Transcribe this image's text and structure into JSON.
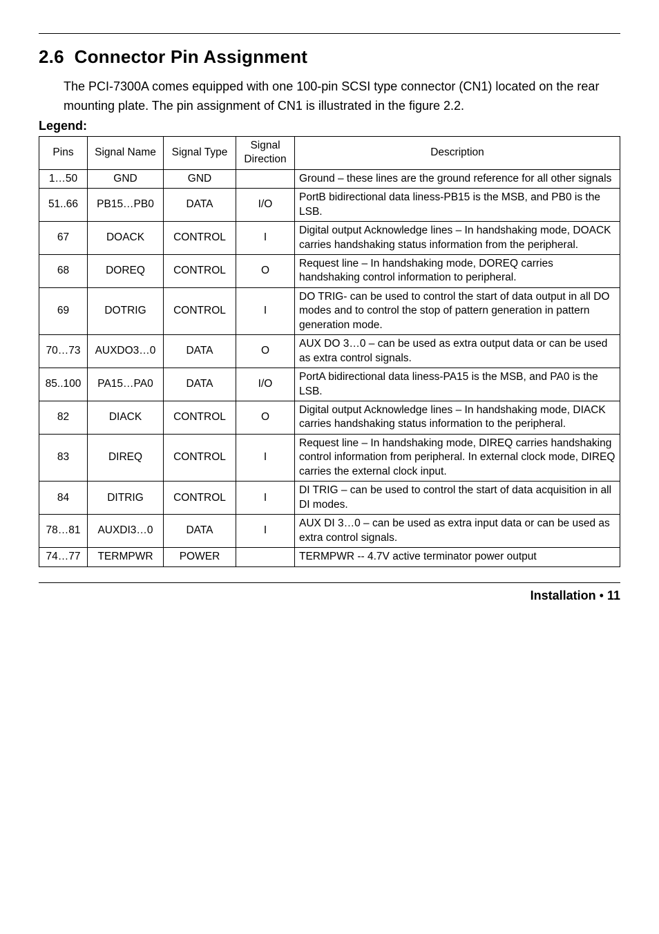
{
  "section": {
    "number": "2.6",
    "title": "Connector Pin Assignment",
    "paragraph": "The PCI-7300A comes equipped with one 100-pin SCSI type connector (CN1) located on the rear mounting plate. The pin assignment of CN1 is illustrated in the figure 2.2.",
    "legend_label": "Legend:"
  },
  "table": {
    "headers": {
      "pins": "Pins",
      "signal_name": "Signal Name",
      "signal_type": "Signal Type",
      "signal_direction": "Signal\nDirection",
      "description": "Description"
    },
    "rows": [
      {
        "pins": "1…50",
        "name": "GND",
        "type": "GND",
        "dir": "",
        "desc": "Ground – these lines are the ground reference for all other signals"
      },
      {
        "pins": "51..66",
        "name": "PB15…PB0",
        "type": "DATA",
        "dir": "I/O",
        "desc": "PortB bidirectional data liness-PB15 is the MSB, and PB0 is the LSB."
      },
      {
        "pins": "67",
        "name": "DOACK",
        "type": "CONTROL",
        "dir": "I",
        "desc": "Digital output Acknowledge lines – In handshaking mode, DOACK carries handshaking status information from the peripheral."
      },
      {
        "pins": "68",
        "name": "DOREQ",
        "type": "CONTROL",
        "dir": "O",
        "desc": "Request line – In handshaking mode, DOREQ carries handshaking control information to peripheral."
      },
      {
        "pins": "69",
        "name": "DOTRIG",
        "type": "CONTROL",
        "dir": "I",
        "desc": "DO TRIG- can be used to control the start of data output in all DO modes and to control the stop of pattern generation in pattern generation mode."
      },
      {
        "pins": "70…73",
        "name": "AUXDO3…0",
        "type": "DATA",
        "dir": "O",
        "desc": "AUX DO 3…0 – can be used as extra output data or can be used as extra control signals."
      },
      {
        "pins": "85..100",
        "name": "PA15…PA0",
        "type": "DATA",
        "dir": "I/O",
        "desc": "PortA bidirectional data liness-PA15 is the MSB, and PA0 is the LSB."
      },
      {
        "pins": "82",
        "name": "DIACK",
        "type": "CONTROL",
        "dir": "O",
        "desc": "Digital output Acknowledge lines – In handshaking mode, DIACK carries handshaking status information to the peripheral."
      },
      {
        "pins": "83",
        "name": "DIREQ",
        "type": "CONTROL",
        "dir": "I",
        "desc": "Request line – In handshaking mode, DIREQ carries handshaking control information from peripheral. In external clock mode, DIREQ carries the external clock input."
      },
      {
        "pins": "84",
        "name": "DITRIG",
        "type": "CONTROL",
        "dir": "I",
        "desc": "DI TRIG – can be used to control the start of data acquisition in all DI modes."
      },
      {
        "pins": "78…81",
        "name": "AUXDI3…0",
        "type": "DATA",
        "dir": "I",
        "desc": "AUX DI 3…0 – can be used as extra input data or can be used as extra control signals."
      },
      {
        "pins": "74…77",
        "name": "TERMPWR",
        "type": "POWER",
        "dir": "",
        "desc": "TERMPWR -- 4.7V active terminator power output"
      }
    ]
  },
  "footer": {
    "label": "Installation",
    "bullet": "•",
    "page": "11"
  }
}
